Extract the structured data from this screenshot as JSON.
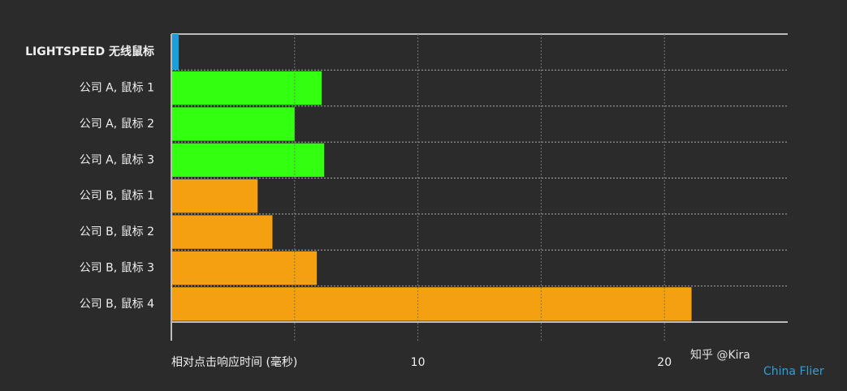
{
  "chart_data": {
    "type": "bar",
    "orientation": "horizontal",
    "categories": [
      "LIGHTSPEED 无线鼠标",
      "公司 A, 鼠标 1",
      "公司 A, 鼠标 2",
      "公司 A, 鼠标 3",
      "公司 B, 鼠标 1",
      "公司 B, 鼠标 2",
      "公司 B, 鼠标 3",
      "公司 B, 鼠标 4"
    ],
    "values": [
      0.3,
      6.1,
      5.0,
      6.2,
      3.5,
      4.1,
      5.9,
      21.1
    ],
    "colors": [
      "#1a9fd9",
      "#33ff11",
      "#33ff11",
      "#33ff11",
      "#f5a010",
      "#f5a010",
      "#f5a010",
      "#f5a010"
    ],
    "x_label": "相对点击响应时间 (毫秒)",
    "xlim": [
      0,
      25
    ],
    "xticks": [
      10,
      20
    ],
    "x_grid_lines": [
      5,
      10,
      15,
      20
    ],
    "watermark": [
      "知乎 @Kira",
      "China Flier"
    ]
  }
}
